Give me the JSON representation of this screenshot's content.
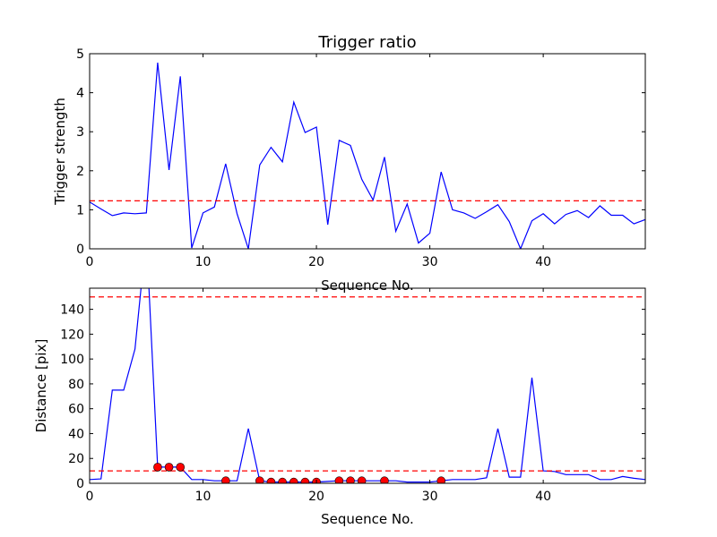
{
  "chart_data": [
    {
      "type": "line",
      "title": "Trigger ratio",
      "xlabel": "Sequence No.",
      "ylabel": "Trigger strength",
      "xlim": [
        0,
        49
      ],
      "ylim": [
        0,
        5
      ],
      "xticks": [
        0,
        10,
        20,
        30,
        40
      ],
      "yticks": [
        0,
        1,
        2,
        3,
        4,
        5
      ],
      "x": [
        0,
        1,
        2,
        3,
        4,
        5,
        6,
        7,
        8,
        9,
        10,
        11,
        12,
        13,
        14,
        15,
        16,
        17,
        18,
        19,
        20,
        21,
        22,
        23,
        24,
        25,
        26,
        27,
        28,
        29,
        30,
        31,
        32,
        33,
        34,
        35,
        36,
        37,
        38,
        39,
        40,
        41,
        42,
        43,
        44,
        45,
        46,
        47,
        48,
        49
      ],
      "series": [
        {
          "name": "trigger strength",
          "color": "#0000ff",
          "values": [
            1.2,
            1.02,
            0.85,
            0.92,
            0.9,
            0.92,
            4.77,
            2.02,
            4.42,
            0.02,
            0.92,
            1.07,
            2.18,
            0.9,
            0.0,
            2.15,
            2.6,
            2.23,
            3.76,
            2.98,
            3.12,
            0.62,
            2.78,
            2.65,
            1.78,
            1.25,
            2.35,
            0.45,
            1.15,
            0.15,
            0.4,
            1.97,
            1.0,
            0.92,
            0.78,
            0.95,
            1.13,
            0.7,
            0.0,
            0.72,
            0.9,
            0.64,
            0.88,
            0.98,
            0.8,
            1.1,
            0.86,
            0.86,
            0.64,
            0.75
          ]
        }
      ],
      "hlines": [
        {
          "value": 1.23,
          "color": "#ff0000",
          "style": "dashed"
        }
      ]
    },
    {
      "type": "line",
      "title": "",
      "xlabel": "Sequence No.",
      "ylabel": "Distance [pix]",
      "xlim": [
        0,
        49
      ],
      "ylim": [
        0,
        157
      ],
      "xticks": [
        0,
        10,
        20,
        30,
        40
      ],
      "yticks": [
        0,
        20,
        40,
        60,
        80,
        100,
        120,
        140
      ],
      "x": [
        0,
        1,
        2,
        3,
        4,
        5,
        6,
        7,
        8,
        9,
        10,
        11,
        12,
        13,
        14,
        15,
        16,
        17,
        18,
        19,
        20,
        21,
        22,
        23,
        24,
        25,
        26,
        27,
        28,
        29,
        30,
        31,
        32,
        33,
        34,
        35,
        36,
        37,
        38,
        39,
        40,
        41,
        42,
        43,
        44,
        45,
        46,
        47,
        48,
        49
      ],
      "series": [
        {
          "name": "distance",
          "color": "#0000ff",
          "values": [
            3,
            3.5,
            75,
            75,
            108,
            200,
            13,
            13,
            13,
            3,
            3,
            2,
            2,
            2,
            44,
            2,
            1,
            1,
            1,
            1,
            1,
            1.5,
            2,
            2,
            2,
            2,
            2,
            2,
            1,
            1,
            1,
            2,
            3,
            3,
            3,
            4.5,
            44,
            5,
            5,
            85,
            10,
            9.5,
            7,
            7,
            7,
            3,
            3,
            5.5,
            4,
            3
          ]
        }
      ],
      "markers": {
        "color": "#ff0000",
        "x": [
          6,
          7,
          8,
          12,
          15,
          16,
          17,
          18,
          19,
          20,
          22,
          23,
          24,
          26,
          31
        ]
      },
      "hlines": [
        {
          "value": 10,
          "color": "#ff0000",
          "style": "dashed"
        },
        {
          "value": 150,
          "color": "#ff0000",
          "style": "dashed"
        }
      ]
    }
  ]
}
